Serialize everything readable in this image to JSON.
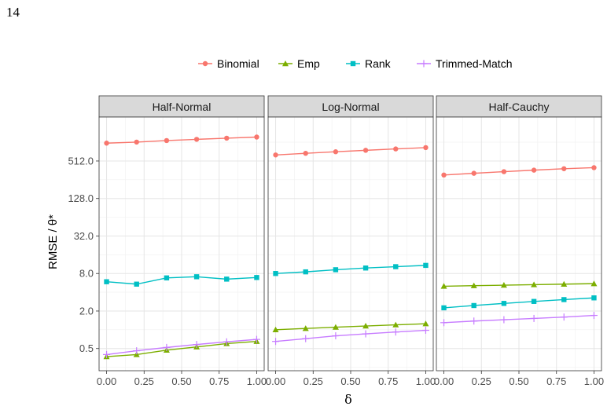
{
  "page": {
    "number": "14"
  },
  "chart_data": {
    "type": "line",
    "facets": [
      "Half-Normal",
      "Log-Normal",
      "Half-Cauchy"
    ],
    "x": [
      0.0,
      0.2,
      0.4,
      0.6,
      0.8,
      1.0
    ],
    "xlabel": "δ",
    "ylabel": "RMSE / θ*",
    "x_ticks": [
      "0.00",
      "0.25",
      "0.50",
      "0.75",
      "1.00"
    ],
    "x_tick_values": [
      0,
      0.25,
      0.5,
      0.75,
      1.0
    ],
    "y_scale": "log2",
    "y_ticks": [
      "0.5",
      "2.0",
      "8.0",
      "32.0",
      "128.0",
      "512.0"
    ],
    "y_tick_values": [
      0.5,
      2,
      8,
      32,
      128,
      512
    ],
    "ylim": [
      0.22,
      2600
    ],
    "xlim": [
      -0.05,
      1.05
    ],
    "grid": true,
    "legend_position": "top",
    "series": [
      {
        "name": "Binomial",
        "color": "#f8766d",
        "marker": "circle",
        "values": {
          "Half-Normal": [
            990,
            1030,
            1090,
            1140,
            1190,
            1240
          ],
          "Log-Normal": [
            640,
            680,
            720,
            760,
            800,
            840
          ],
          "Half-Cauchy": [
            305,
            325,
            345,
            365,
            385,
            400
          ]
        }
      },
      {
        "name": "Emp",
        "color": "#7cae00",
        "marker": "triangle",
        "values": {
          "Half-Normal": [
            0.37,
            0.4,
            0.47,
            0.53,
            0.6,
            0.65
          ],
          "Log-Normal": [
            1.0,
            1.05,
            1.1,
            1.15,
            1.2,
            1.25
          ],
          "Half-Cauchy": [
            5.0,
            5.1,
            5.2,
            5.3,
            5.4,
            5.5
          ]
        }
      },
      {
        "name": "Rank",
        "color": "#00bfc4",
        "marker": "square",
        "values": {
          "Half-Normal": [
            5.9,
            5.4,
            6.8,
            7.1,
            6.5,
            6.9
          ],
          "Log-Normal": [
            8.0,
            8.5,
            9.2,
            9.8,
            10.3,
            10.8
          ],
          "Half-Cauchy": [
            2.25,
            2.45,
            2.65,
            2.85,
            3.05,
            3.25
          ]
        }
      },
      {
        "name": "Trimmed-Match",
        "color": "#c77cff",
        "marker": "plus",
        "values": {
          "Half-Normal": [
            0.4,
            0.46,
            0.52,
            0.58,
            0.64,
            0.7
          ],
          "Log-Normal": [
            0.65,
            0.72,
            0.8,
            0.86,
            0.92,
            0.98
          ],
          "Half-Cauchy": [
            1.3,
            1.38,
            1.45,
            1.52,
            1.6,
            1.7
          ]
        }
      }
    ]
  }
}
